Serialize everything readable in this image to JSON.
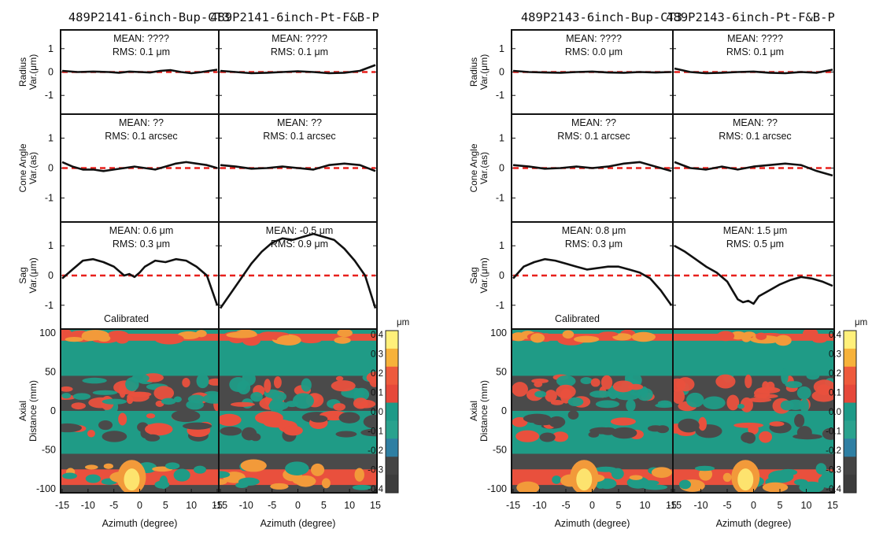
{
  "chart_data": [
    {
      "type": "line",
      "title_left": "489P2141-6inch-Bup-CT3",
      "title_right": "489P2141-6inch-Pt-F&B-P",
      "rows": [
        {
          "ylabel_1": "Radius",
          "ylabel_2": "Var.(μm)",
          "yticks": [
            "1",
            "0",
            "-1"
          ],
          "ylim": [
            -1.8,
            1.8
          ],
          "panels": [
            {
              "stat_mean": "MEAN: ????",
              "stat_rms": "RMS: 0.1 μm",
              "x": [
                -15,
                -12,
                -9,
                -6,
                -4,
                -2,
                0,
                2,
                4,
                6,
                8,
                10,
                12,
                15
              ],
              "values": [
                0.05,
                0.0,
                0.02,
                0.0,
                -0.03,
                0.02,
                0.0,
                -0.02,
                0.05,
                0.08,
                0.0,
                -0.05,
                0.0,
                0.1
              ]
            },
            {
              "stat_mean": "MEAN: ????",
              "stat_rms": "RMS: 0.1 μm",
              "x": [
                -15,
                -12,
                -9,
                -6,
                -3,
                0,
                3,
                6,
                9,
                12,
                15
              ],
              "values": [
                0.05,
                0.0,
                -0.05,
                -0.03,
                0.0,
                0.03,
                0.0,
                -0.05,
                -0.03,
                0.05,
                0.3
              ]
            }
          ]
        },
        {
          "ylabel_1": "Cone Angle",
          "ylabel_2": "Var.(as)",
          "yticks": [
            "1",
            "0",
            "-1"
          ],
          "ylim": [
            -1.8,
            1.8
          ],
          "panels": [
            {
              "stat_mean": "MEAN: ??",
              "stat_rms": "RMS: 0.1 arcsec",
              "x": [
                -15,
                -13,
                -11,
                -9,
                -7,
                -5,
                -3,
                -1,
                1,
                3,
                5,
                7,
                9,
                11,
                13,
                15
              ],
              "values": [
                0.2,
                0.05,
                -0.05,
                -0.05,
                -0.1,
                -0.05,
                0.0,
                0.05,
                0.0,
                -0.05,
                0.05,
                0.15,
                0.2,
                0.15,
                0.1,
                0.0
              ]
            },
            {
              "stat_mean": "MEAN: ??",
              "stat_rms": "RMS: 0.1 arcsec",
              "x": [
                -15,
                -12,
                -9,
                -6,
                -3,
                0,
                3,
                6,
                9,
                12,
                15
              ],
              "values": [
                0.1,
                0.05,
                -0.02,
                0.0,
                0.05,
                0.0,
                -0.05,
                0.1,
                0.15,
                0.1,
                -0.1
              ]
            }
          ]
        },
        {
          "ylabel_1": "Sag",
          "ylabel_2": "Var.(μm)",
          "yticks": [
            "1",
            "0",
            "-1"
          ],
          "ylim": [
            -1.8,
            1.8
          ],
          "note": "Calibrated",
          "panels": [
            {
              "stat_mean": "MEAN:    0.6 μm",
              "stat_rms": "RMS: 0.3 μm",
              "x": [
                -15,
                -13,
                -11,
                -9,
                -7,
                -5,
                -3,
                -2,
                -1,
                0,
                1,
                3,
                5,
                7,
                9,
                11,
                13,
                15
              ],
              "values": [
                -0.1,
                0.2,
                0.5,
                0.55,
                0.45,
                0.3,
                0.0,
                0.05,
                -0.05,
                0.1,
                0.3,
                0.5,
                0.45,
                0.55,
                0.5,
                0.3,
                0.0,
                -1.0
              ]
            },
            {
              "stat_mean": "MEAN:    -0.5 μm",
              "stat_rms": "RMS: 0.9 μm",
              "x": [
                -15,
                -13,
                -11,
                -9,
                -7,
                -5,
                -3,
                -1,
                1,
                3,
                5,
                7,
                9,
                11,
                13,
                15
              ],
              "values": [
                -1.1,
                -0.6,
                -0.1,
                0.4,
                0.8,
                1.1,
                1.25,
                1.2,
                1.3,
                1.4,
                1.3,
                1.2,
                0.9,
                0.5,
                0.0,
                -1.1
              ]
            }
          ]
        }
      ],
      "map": {
        "ylabel_1": "Axial",
        "ylabel_2": "Distance (mm)",
        "yticks": [
          "100",
          "50",
          "0",
          "-50",
          "-100"
        ],
        "ylim": [
          -105,
          105
        ]
      },
      "xticks_left": [
        "-15",
        "-10",
        "-5",
        "0",
        "5",
        "10",
        "15"
      ],
      "xticks_right": [
        "-15",
        "-10",
        "-5",
        "0",
        "5",
        "10",
        "15"
      ],
      "xlabel": "Azimuth (degree)",
      "xlim": [
        -15,
        15
      ],
      "reference_line": 0
    },
    {
      "type": "line",
      "title_left": "489P2143-6inch-Bup-CT3",
      "title_right": "489P2143-6inch-Pt-F&B-P",
      "rows": [
        {
          "ylabel_1": "Radius",
          "ylabel_2": "Var.(μm)",
          "yticks": [
            "1",
            "0",
            "-1"
          ],
          "ylim": [
            -1.8,
            1.8
          ],
          "panels": [
            {
              "stat_mean": "MEAN: ????",
              "stat_rms": "RMS: 0.0 μm",
              "x": [
                -15,
                -12,
                -9,
                -6,
                -3,
                0,
                3,
                6,
                9,
                12,
                15
              ],
              "values": [
                0.05,
                0.0,
                -0.02,
                -0.03,
                0.0,
                0.02,
                -0.02,
                -0.03,
                0.0,
                -0.02,
                0.0
              ]
            },
            {
              "stat_mean": "MEAN: ????",
              "stat_rms": "RMS: 0.1 μm",
              "x": [
                -15,
                -12,
                -9,
                -6,
                -3,
                0,
                3,
                6,
                9,
                12,
                15
              ],
              "values": [
                0.15,
                0.0,
                -0.05,
                -0.03,
                0.0,
                0.02,
                -0.03,
                -0.05,
                0.0,
                -0.03,
                0.1
              ]
            }
          ]
        },
        {
          "ylabel_1": "Cone Angle",
          "ylabel_2": "Var.(as)",
          "yticks": [
            "1",
            "0",
            "-1"
          ],
          "ylim": [
            -1.8,
            1.8
          ],
          "panels": [
            {
              "stat_mean": "MEAN: ??",
              "stat_rms": "RMS: 0.1 arcsec",
              "x": [
                -15,
                -12,
                -9,
                -6,
                -3,
                0,
                3,
                6,
                9,
                12,
                15
              ],
              "values": [
                0.1,
                0.05,
                -0.02,
                0.0,
                0.05,
                0.0,
                0.05,
                0.15,
                0.2,
                0.05,
                -0.1
              ]
            },
            {
              "stat_mean": "MEAN: ??",
              "stat_rms": "RMS: 0.1 arcsec",
              "x": [
                -15,
                -12,
                -9,
                -6,
                -3,
                0,
                3,
                6,
                9,
                12,
                15
              ],
              "values": [
                0.2,
                0.0,
                -0.05,
                0.05,
                -0.05,
                0.05,
                0.1,
                0.15,
                0.1,
                -0.1,
                -0.25
              ]
            }
          ]
        },
        {
          "ylabel_1": "Sag",
          "ylabel_2": "Var.(μm)",
          "yticks": [
            "1",
            "0",
            "-1"
          ],
          "ylim": [
            -1.8,
            1.8
          ],
          "note": "Calibrated",
          "panels": [
            {
              "stat_mean": "MEAN:    0.8 μm",
              "stat_rms": "RMS: 0.3 μm",
              "x": [
                -15,
                -13,
                -11,
                -9,
                -7,
                -5,
                -3,
                -1,
                1,
                3,
                5,
                7,
                9,
                11,
                13,
                15
              ],
              "values": [
                -0.1,
                0.3,
                0.45,
                0.55,
                0.5,
                0.4,
                0.3,
                0.2,
                0.25,
                0.3,
                0.3,
                0.2,
                0.1,
                -0.1,
                -0.5,
                -1.0
              ]
            },
            {
              "stat_mean": "MEAN:    1.5 μm",
              "stat_rms": "RMS: 0.5 μm",
              "x": [
                -15,
                -13,
                -11,
                -9,
                -7,
                -5,
                -4,
                -3,
                -2,
                -1,
                0,
                1,
                3,
                5,
                7,
                9,
                11,
                13,
                15
              ],
              "values": [
                1.0,
                0.8,
                0.55,
                0.3,
                0.1,
                -0.2,
                -0.5,
                -0.8,
                -0.9,
                -0.85,
                -0.95,
                -0.7,
                -0.5,
                -0.3,
                -0.15,
                -0.05,
                -0.1,
                -0.2,
                -0.35
              ]
            }
          ]
        }
      ],
      "map": {
        "ylabel_1": "Axial",
        "ylabel_2": "Distance (mm)",
        "yticks": [
          "100",
          "50",
          "0",
          "-50",
          "-100"
        ],
        "ylim": [
          -105,
          105
        ]
      },
      "xticks_left": [
        "-15",
        "-10",
        "-5",
        "0",
        "5",
        "10",
        "15"
      ],
      "xticks_right": [
        "-15",
        "-10",
        "-5",
        "0",
        "5",
        "10",
        "15"
      ],
      "xlabel": "Azimuth (degree)",
      "xlim": [
        -15,
        15
      ],
      "reference_line": 0
    }
  ],
  "colorbar": {
    "unit": "μm",
    "ticks": [
      "0.4",
      "0.3",
      "0.2",
      "0.1",
      "0.0",
      "-0.1",
      "-0.2",
      "-0.3",
      "-0.4"
    ],
    "colors": [
      "#fff07a",
      "#f7b23a",
      "#ee5a3c",
      "#e6483a",
      "#1d9a88",
      "#2aa28e",
      "#2f7fa3",
      "#444444",
      "#3c3c3c"
    ]
  },
  "map_colors": {
    "background": "#1f9b86",
    "dark": "#4a4a4a",
    "red": "#e9503d",
    "orange": "#f29a3a",
    "yellow": "#fde36e",
    "blue": "#2f88b0"
  },
  "line_color": "#111111",
  "ref_color": "#e8201c"
}
